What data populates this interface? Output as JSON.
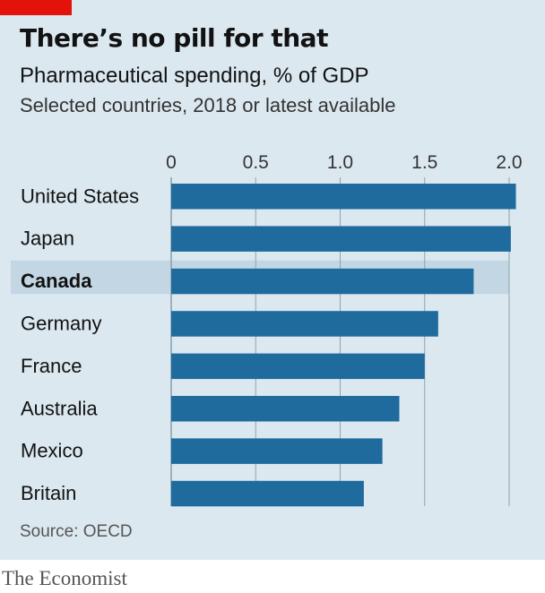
{
  "header": {
    "title": "There’s no pill for that",
    "subtitle": "Pharmaceutical spending, % of GDP",
    "subsubtitle": "Selected countries, 2018 or latest available"
  },
  "footer": {
    "source": "Source: OECD",
    "brand": "The Economist"
  },
  "colors": {
    "background": "#dbe8f0",
    "bar": "#1f6b9e",
    "highlight_band": "#c2d7e3",
    "gridline": "#8fa3ad",
    "brand_tag": "#e3120b"
  },
  "chart_data": {
    "type": "bar",
    "orientation": "horizontal",
    "title": "There’s no pill for that",
    "subtitle": "Pharmaceutical spending, % of GDP",
    "categories": [
      "United States",
      "Japan",
      "Canada",
      "Germany",
      "France",
      "Australia",
      "Mexico",
      "Britain"
    ],
    "values": [
      2.04,
      2.01,
      1.79,
      1.58,
      1.5,
      1.35,
      1.25,
      1.14
    ],
    "highlight": "Canada",
    "xlim": [
      0,
      2.0
    ],
    "xticks": [
      "0",
      "0.5",
      "1.0",
      "1.5",
      "2.0"
    ],
    "xtick_values": [
      0,
      0.5,
      1.0,
      1.5,
      2.0
    ],
    "xlabel": "",
    "ylabel": "",
    "grid": true,
    "axis_position": "top"
  }
}
